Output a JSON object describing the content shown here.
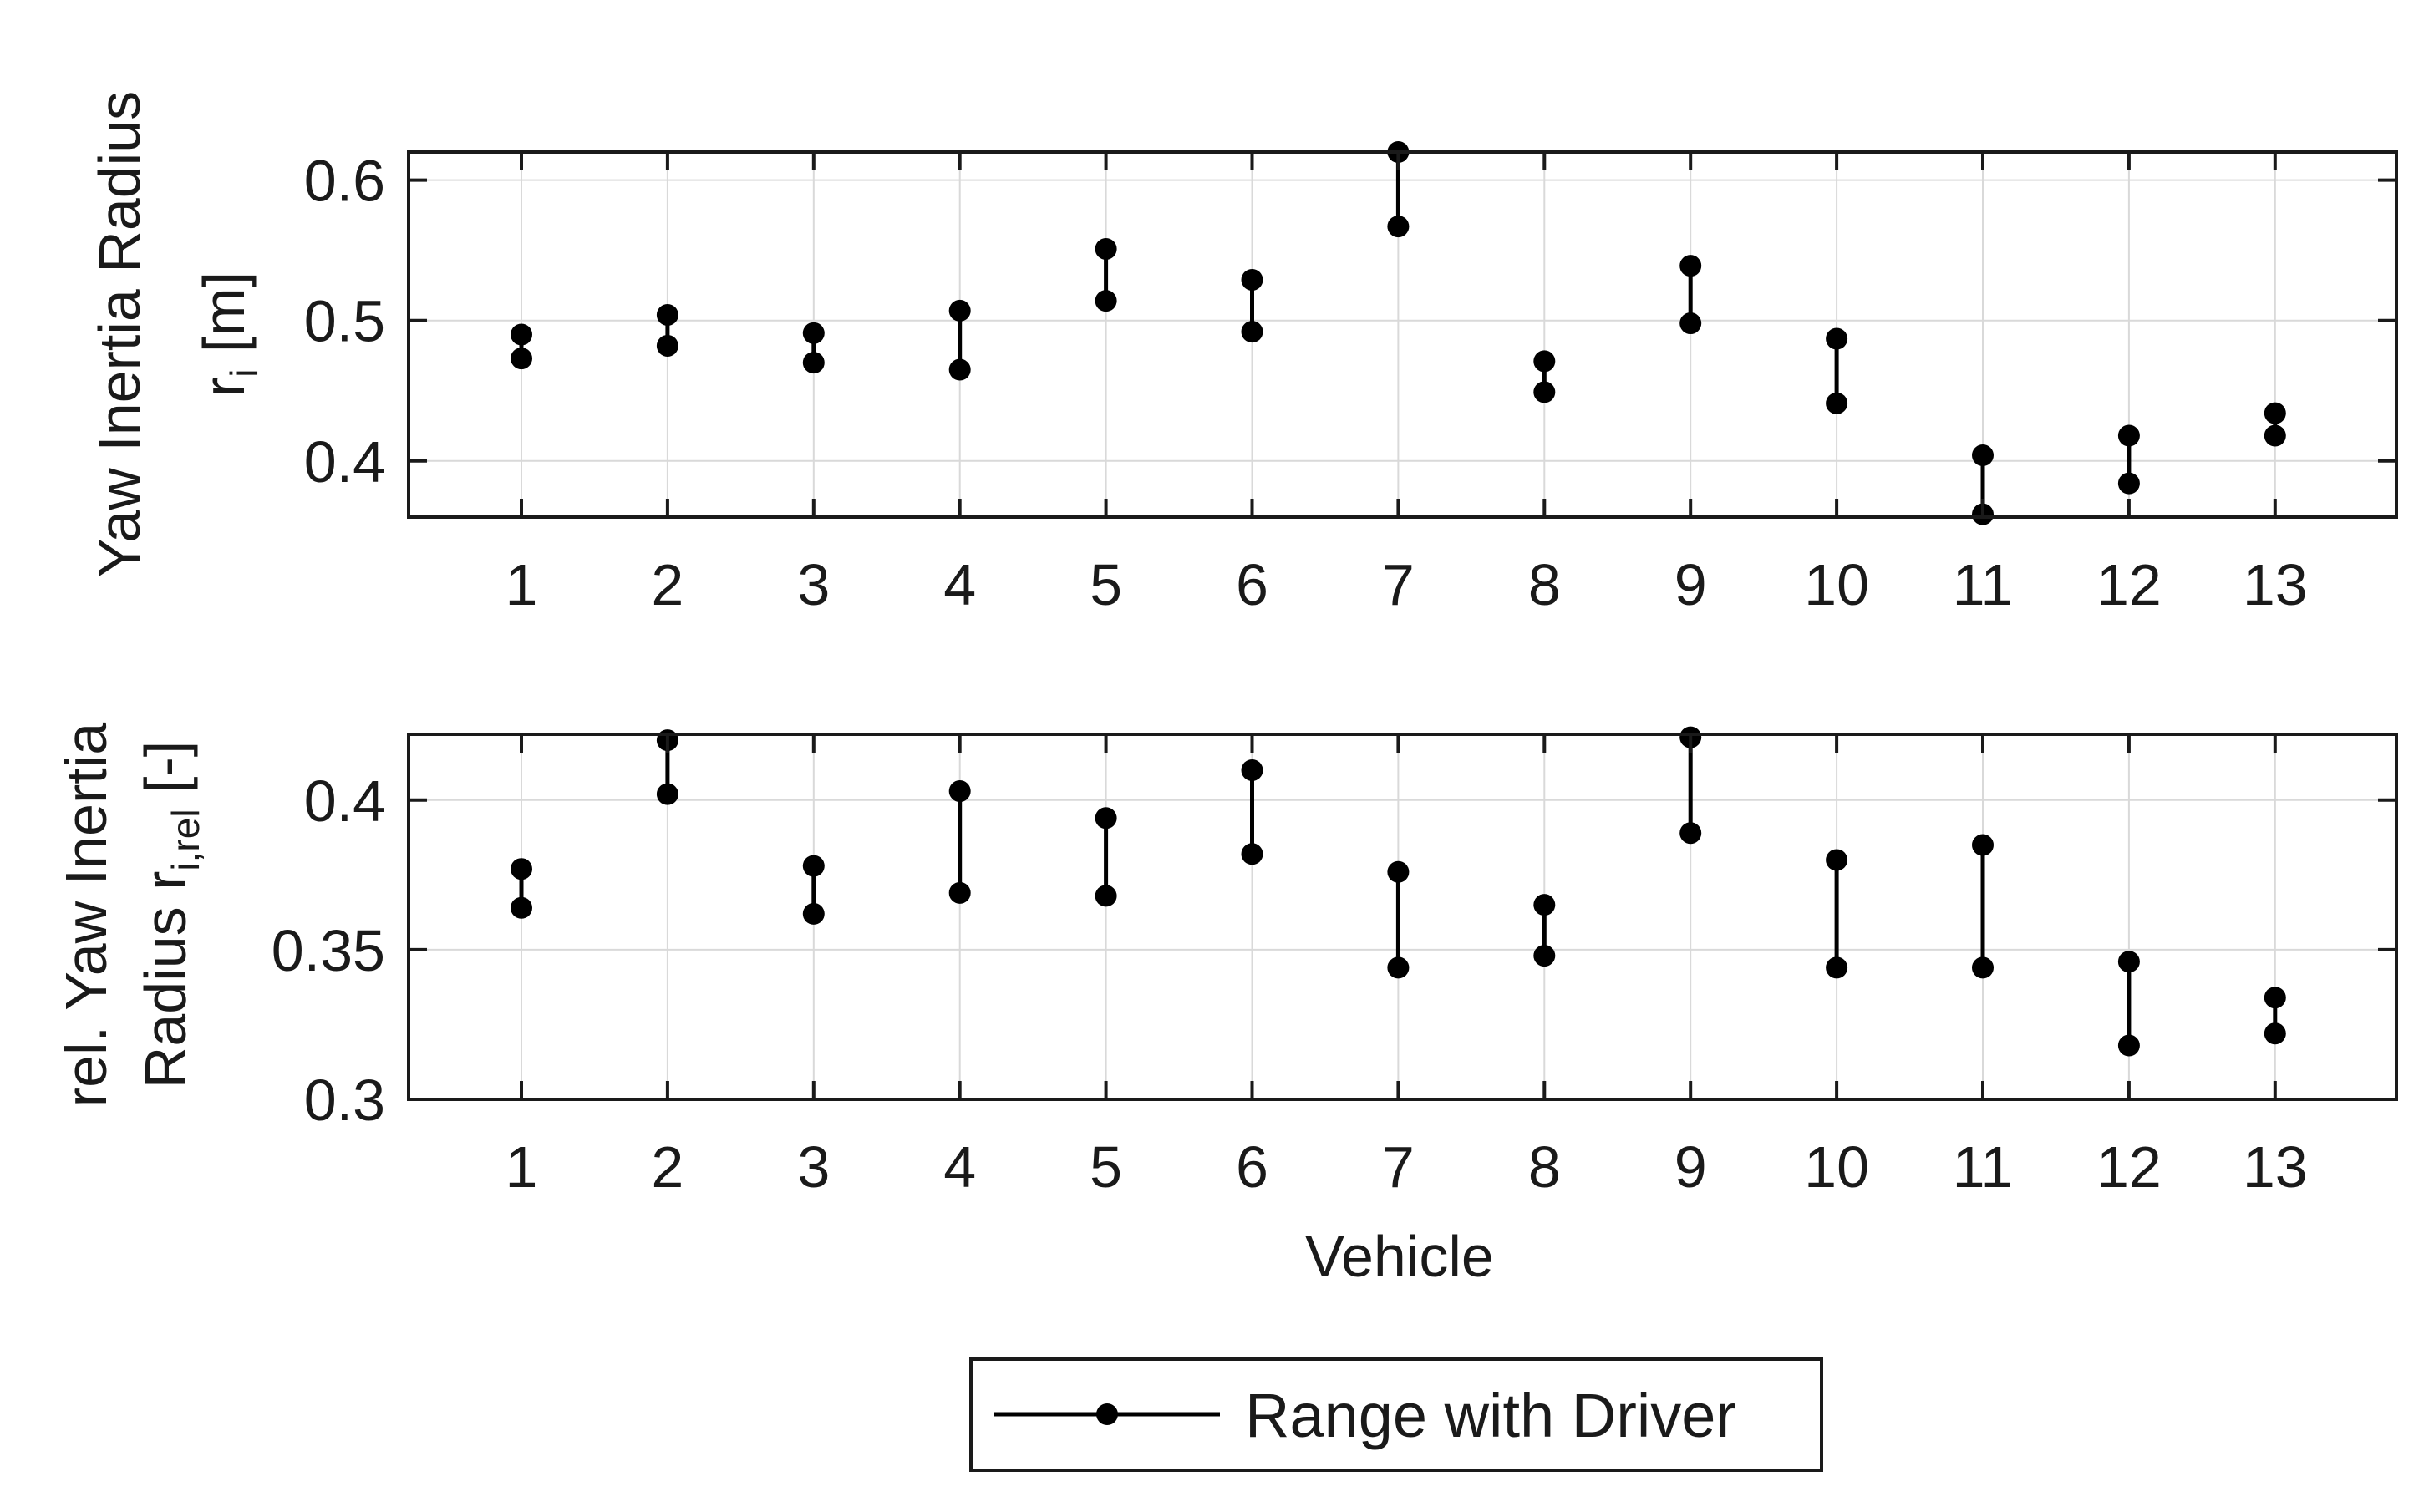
{
  "chart_data": [
    {
      "type": "range",
      "panel": "top",
      "ylabel_main": "Yaw Inertia Radius",
      "ylabel_symbol": "r",
      "ylabel_subscript": "i",
      "ylabel_unit": "[m]",
      "xlabel": "",
      "categories": [
        "1",
        "2",
        "3",
        "4",
        "5",
        "6",
        "7",
        "8",
        "9",
        "10",
        "11",
        "12",
        "13"
      ],
      "ylim": [
        0.36,
        0.62
      ],
      "yticks": [
        0.4,
        0.5,
        0.6
      ],
      "ytick_labels": [
        "0.4",
        "0.5",
        "0.6"
      ],
      "grid": true,
      "series": [
        {
          "name": "Range with Driver",
          "low": [
            0.473,
            0.482,
            0.47,
            0.465,
            0.514,
            0.492,
            0.567,
            0.449,
            0.498,
            0.441,
            0.362,
            0.384,
            0.418
          ],
          "high": [
            0.49,
            0.504,
            0.491,
            0.507,
            0.551,
            0.529,
            0.62,
            0.471,
            0.539,
            0.487,
            0.404,
            0.418,
            0.434
          ]
        }
      ]
    },
    {
      "type": "range",
      "panel": "bottom",
      "ylabel_line1": "rel. Yaw Inertia",
      "ylabel_line2": "Radius r",
      "ylabel_subscript": "i,rel",
      "ylabel_unit": "[-]",
      "xlabel": "Vehicle",
      "categories": [
        "1",
        "2",
        "3",
        "4",
        "5",
        "6",
        "7",
        "8",
        "9",
        "10",
        "11",
        "12",
        "13"
      ],
      "ylim": [
        0.3,
        0.422
      ],
      "yticks": [
        0.3,
        0.35,
        0.4
      ],
      "ytick_labels": [
        "0.3",
        "0.35",
        "0.4"
      ],
      "grid": true,
      "series": [
        {
          "name": "Range with Driver",
          "low": [
            0.364,
            0.402,
            0.362,
            0.369,
            0.368,
            0.382,
            0.344,
            0.348,
            0.389,
            0.344,
            0.344,
            0.318,
            0.322
          ],
          "high": [
            0.377,
            0.42,
            0.378,
            0.403,
            0.394,
            0.41,
            0.376,
            0.365,
            0.421,
            0.38,
            0.385,
            0.346,
            0.334
          ]
        }
      ]
    }
  ],
  "legend": {
    "label": "Range with Driver",
    "position": "bottom-center"
  },
  "colors": {
    "marker": "#000000",
    "grid": "#d9d9d9",
    "axes": "#1a1a1a"
  }
}
